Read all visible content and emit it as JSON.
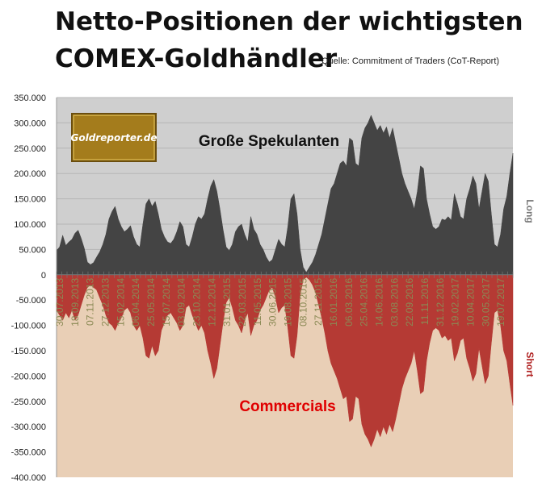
{
  "header": {
    "title_line1": "Netto-Positionen der wichtigsten",
    "title_line2": "COMEX-Goldhändler",
    "source": "Quelle: Commitment of Traders (CoT-Report)"
  },
  "logo": {
    "text": "Goldreporter.de"
  },
  "colors": {
    "long_area": "#444444",
    "short_area": "#b53a34",
    "upper_background": "#cfcfcf",
    "lower_background": "#e9cfb6",
    "long_label": "#111111",
    "short_label": "#e00000",
    "logo_background": "#a47c1c"
  },
  "chart_data": {
    "type": "area",
    "title": "Netto-Positionen der wichtigsten COMEX-Goldhändler",
    "ylim": [
      -400000,
      350000
    ],
    "yticks": [
      350000,
      300000,
      250000,
      200000,
      150000,
      100000,
      50000,
      0,
      -50000,
      -100000,
      -150000,
      -200000,
      -250000,
      -300000,
      -350000,
      -400000
    ],
    "ytick_labels": [
      "350.000",
      "300.000",
      "250.000",
      "200.000",
      "150.000",
      "100.000",
      "50.000",
      "0",
      "-50.000",
      "-100.000",
      "-150.000",
      "-200.000",
      "-250.000",
      "-300.000",
      "-350.000",
      "-400.000"
    ],
    "x_labels": [
      "30.07.2013",
      "18.09.2013",
      "07.11.2013",
      "27.12.2013",
      "15.02.2014",
      "06.04.2014",
      "25.05.2014",
      "15.07.2014",
      "03.09.2014",
      "23.10.2014",
      "12.12.2014",
      "31.01.2015",
      "22.03.2015",
      "11.05.2015",
      "30.06.2015",
      "19.08.2015",
      "08.10.2015",
      "27.11.2015",
      "16.01.2016",
      "06.03.2016",
      "25.04.2016",
      "14.06.2016",
      "03.08.2016",
      "22.09.2016",
      "11.11.2016",
      "31.12.2016",
      "19.02.2017",
      "10.04.2017",
      "30.05.2017",
      "19.07.2017"
    ],
    "legend_right": {
      "long": "Long",
      "short": "Short"
    },
    "series": [
      {
        "name": "Große Spekulanten",
        "values": [
          48000,
          55000,
          78000,
          58000,
          65000,
          70000,
          82000,
          88000,
          72000,
          52000,
          25000,
          20000,
          24000,
          35000,
          45000,
          60000,
          80000,
          110000,
          125000,
          135000,
          110000,
          95000,
          85000,
          90000,
          97000,
          75000,
          60000,
          55000,
          100000,
          140000,
          150000,
          135000,
          145000,
          120000,
          90000,
          75000,
          65000,
          62000,
          70000,
          85000,
          105000,
          95000,
          60000,
          55000,
          75000,
          100000,
          115000,
          110000,
          120000,
          150000,
          175000,
          188000,
          165000,
          130000,
          90000,
          55000,
          48000,
          60000,
          85000,
          95000,
          100000,
          80000,
          65000,
          115000,
          90000,
          80000,
          60000,
          50000,
          35000,
          25000,
          30000,
          50000,
          70000,
          60000,
          55000,
          95000,
          150000,
          160000,
          120000,
          50000,
          15000,
          5000,
          15000,
          25000,
          40000,
          60000,
          80000,
          110000,
          140000,
          170000,
          180000,
          200000,
          220000,
          225000,
          215000,
          270000,
          265000,
          220000,
          215000,
          270000,
          290000,
          300000,
          315000,
          300000,
          285000,
          295000,
          280000,
          292000,
          270000,
          290000,
          260000,
          230000,
          200000,
          180000,
          165000,
          150000,
          130000,
          165000,
          215000,
          210000,
          150000,
          120000,
          95000,
          90000,
          95000,
          110000,
          108000,
          115000,
          108000,
          160000,
          140000,
          115000,
          110000,
          150000,
          170000,
          195000,
          180000,
          130000,
          165000,
          200000,
          185000,
          120000,
          60000,
          55000,
          80000,
          130000,
          155000,
          200000,
          240000
        ]
      },
      {
        "name": "Commercials",
        "values": [
          -70000,
          -80000,
          -90000,
          -75000,
          -85000,
          -70000,
          -90000,
          -80000,
          -60000,
          -40000,
          -25000,
          -20000,
          -25000,
          -30000,
          -45000,
          -60000,
          -80000,
          -95000,
          -100000,
          -110000,
          -95000,
          -85000,
          -70000,
          -65000,
          -75000,
          -100000,
          -110000,
          -100000,
          -125000,
          -160000,
          -165000,
          -140000,
          -160000,
          -150000,
          -110000,
          -95000,
          -80000,
          -75000,
          -85000,
          -95000,
          -110000,
          -100000,
          -65000,
          -60000,
          -80000,
          -95000,
          -110000,
          -100000,
          -115000,
          -150000,
          -175000,
          -205000,
          -185000,
          -140000,
          -95000,
          -55000,
          -45000,
          -65000,
          -90000,
          -100000,
          -115000,
          -90000,
          -75000,
          -120000,
          -100000,
          -90000,
          -70000,
          -60000,
          -45000,
          -30000,
          -25000,
          -45000,
          -75000,
          -65000,
          -60000,
          -105000,
          -160000,
          -165000,
          -120000,
          -40000,
          -10000,
          -5000,
          -10000,
          -20000,
          -35000,
          -60000,
          -85000,
          -115000,
          -150000,
          -175000,
          -190000,
          -205000,
          -225000,
          -245000,
          -240000,
          -290000,
          -285000,
          -240000,
          -245000,
          -295000,
          -315000,
          -325000,
          -340000,
          -325000,
          -305000,
          -320000,
          -300000,
          -315000,
          -295000,
          -310000,
          -285000,
          -255000,
          -225000,
          -205000,
          -190000,
          -175000,
          -150000,
          -190000,
          -235000,
          -230000,
          -170000,
          -135000,
          -110000,
          -105000,
          -110000,
          -125000,
          -120000,
          -130000,
          -125000,
          -170000,
          -155000,
          -130000,
          -125000,
          -165000,
          -185000,
          -210000,
          -195000,
          -145000,
          -180000,
          -215000,
          -200000,
          -135000,
          -75000,
          -70000,
          -100000,
          -150000,
          -170000,
          -215000,
          -258000
        ]
      }
    ]
  }
}
